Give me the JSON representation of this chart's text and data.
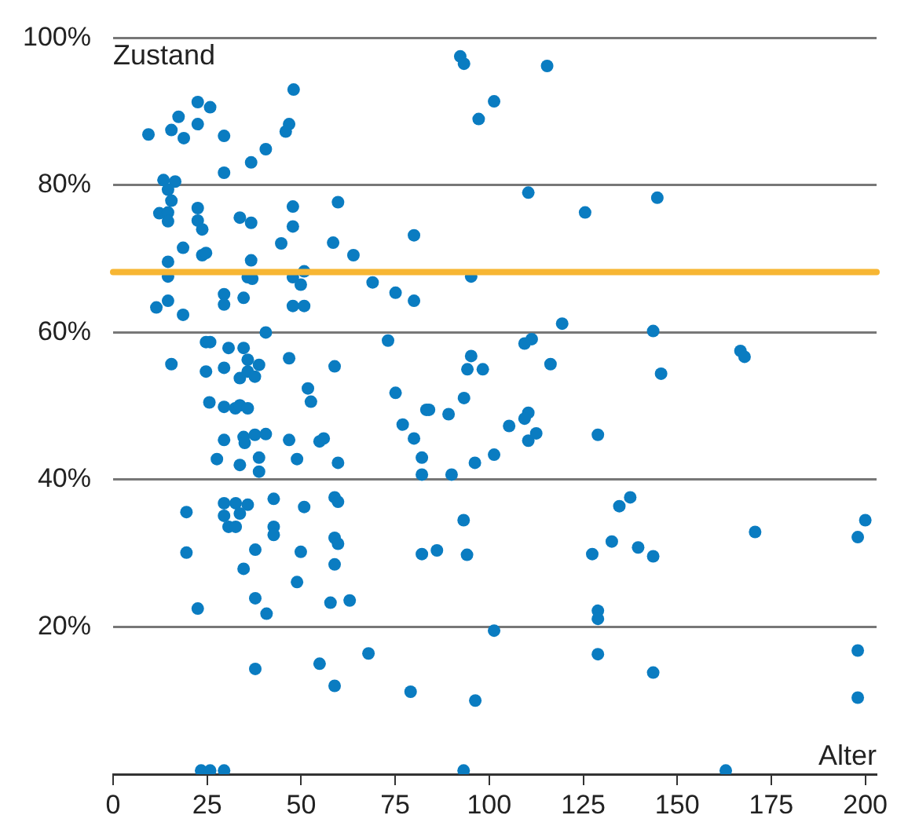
{
  "chart_data": {
    "type": "scatter",
    "xlabel": "Alter",
    "ylabel": "Zustand",
    "x": [
      48,
      22.5,
      25.8,
      17.4,
      9.4,
      15.5,
      18.8,
      22.5,
      29.5,
      46.8,
      45.9,
      40.6,
      36.7,
      29.5,
      13.4,
      16.5,
      14.6,
      15.5,
      12.3,
      14.6,
      14.6,
      22.5,
      22.5,
      23.7,
      33.7,
      36.7,
      47.8,
      47.8,
      44.7,
      18.6,
      23.7,
      24.7,
      14.6,
      36.7,
      14.6,
      35.8,
      37,
      47.8,
      50.8,
      49.9,
      29.5,
      29.5,
      34.7,
      14.6,
      11.5,
      18.6,
      47.8,
      50.8,
      40.6,
      24.7,
      25.8,
      30.7,
      34.7,
      15.5,
      35.8,
      38.8,
      29.5,
      24.7,
      46.8,
      58.5,
      58.9,
      35.8,
      33.7,
      37.7,
      51.8,
      52.6,
      25.6,
      29.5,
      32.5,
      33.7,
      35.8,
      29.5,
      34.7,
      35,
      37.7,
      40.6,
      46.8,
      54.9,
      56,
      27.6,
      33.7,
      38.8,
      38.8,
      48.9,
      29.5,
      32.6,
      35.8,
      42.7,
      50.8,
      19.5,
      29.5,
      33.7,
      30.7,
      32.6,
      42.7,
      42.7,
      19.5,
      37.8,
      49.9,
      34.7,
      48.9,
      37.8,
      22.5,
      40.8,
      37.8,
      23.4,
      25.8,
      29.5,
      92.3,
      93.3,
      115.4,
      101.3,
      97.2,
      110.4,
      59.8,
      125.5,
      63.9,
      80,
      69,
      75.1,
      80,
      95.2,
      119.4,
      73.1,
      109.4,
      111.3,
      95.2,
      94.2,
      98.3,
      116.3,
      75.1,
      93.3,
      83.3,
      84,
      89.2,
      77,
      80,
      110.4,
      109.4,
      105.3,
      110.4,
      112.5,
      128.9,
      59.8,
      82.1,
      82.1,
      90,
      96.2,
      101.3,
      58.9,
      59.8,
      93.2,
      58.9,
      59.8,
      58.9,
      82.1,
      86.1,
      94.1,
      127.4,
      57.8,
      62.9,
      128.9,
      128.9,
      101.3,
      67.9,
      128.9,
      54.9,
      58.9,
      79.1,
      96.3,
      93.2,
      144.7,
      143.6,
      166.8,
      167.9,
      145.7,
      137.5,
      134.6,
      132.6,
      139.6,
      143.6,
      170.7,
      200,
      198,
      143.6,
      198,
      198,
      162.9
    ],
    "values": [
      93,
      91.3,
      90.6,
      89.3,
      86.9,
      87.5,
      86.4,
      88.3,
      86.7,
      88.3,
      87.3,
      84.9,
      83.1,
      81.7,
      80.7,
      80.5,
      79.4,
      77.9,
      76.2,
      76.3,
      75.1,
      76.9,
      75.2,
      74,
      75.6,
      74.9,
      77.1,
      74.4,
      72.1,
      71.5,
      70.5,
      70.8,
      69.6,
      69.8,
      67.6,
      67.5,
      67.3,
      67.5,
      68.3,
      66.5,
      65.2,
      63.8,
      64.7,
      64.3,
      63.4,
      62.4,
      63.6,
      63.6,
      60,
      58.7,
      58.7,
      57.9,
      57.9,
      55.7,
      56.3,
      55.6,
      55.2,
      54.7,
      56.5,
      72.2,
      55.4,
      54.7,
      53.8,
      54,
      52.4,
      50.6,
      50.5,
      49.9,
      49.7,
      50.1,
      49.7,
      45.4,
      45.8,
      45,
      46.1,
      46.2,
      45.4,
      45.2,
      45.6,
      42.8,
      42,
      43,
      41.1,
      42.8,
      36.8,
      36.8,
      36.6,
      37.4,
      36.3,
      35.6,
      35.1,
      35.4,
      33.6,
      33.6,
      33.6,
      32.5,
      30.1,
      30.5,
      30.2,
      27.9,
      26.1,
      23.9,
      22.5,
      21.8,
      14.3,
      0.5,
      0.5,
      0.5,
      97.5,
      96.5,
      96.2,
      91.4,
      89,
      79,
      77.7,
      76.3,
      70.5,
      73.2,
      66.8,
      65.4,
      64.3,
      67.6,
      61.2,
      58.9,
      58.5,
      59.1,
      56.8,
      55,
      55,
      55.7,
      51.8,
      51.1,
      49.5,
      49.5,
      48.9,
      47.5,
      45.6,
      49.1,
      48.3,
      47.3,
      45.3,
      46.3,
      46.1,
      42.3,
      43,
      40.7,
      40.7,
      42.3,
      43.4,
      37.6,
      37,
      34.5,
      32.1,
      31.3,
      28.5,
      29.9,
      30.4,
      29.8,
      29.9,
      23.3,
      23.6,
      22.2,
      21.1,
      19.5,
      16.4,
      16.3,
      15,
      12,
      11.2,
      10,
      0.5,
      78.3,
      60.2,
      57.5,
      56.7,
      54.4,
      37.6,
      36.4,
      31.6,
      30.8,
      29.6,
      32.9,
      34.5,
      32.2,
      13.8,
      16.8,
      10.4,
      0.5
    ],
    "color": "#0a7cc1",
    "marker": "circle",
    "xlim": [
      0,
      203
    ],
    "xticks": [
      0,
      25,
      50,
      75,
      100,
      125,
      150,
      175,
      200
    ],
    "ylim": [
      0,
      100
    ],
    "yticks": [
      {
        "value": 20,
        "label": "20%"
      },
      {
        "value": 40,
        "label": "40%"
      },
      {
        "value": 60,
        "label": "60%"
      },
      {
        "value": 80,
        "label": "80%"
      },
      {
        "value": 100,
        "label": "100%"
      }
    ],
    "grid": "y",
    "ref_lines": [
      {
        "axis": "y",
        "value": 68.2,
        "color": "#f7b633"
      }
    ]
  }
}
